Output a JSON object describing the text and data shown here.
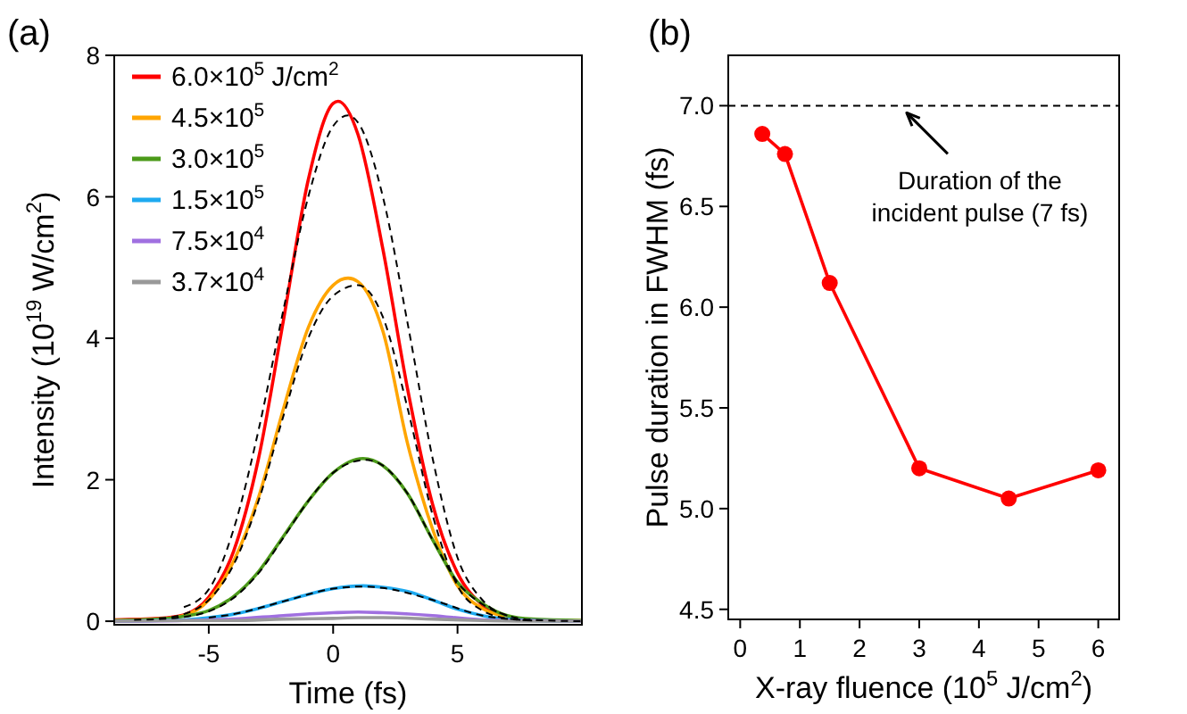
{
  "chart_data": [
    {
      "type": "line",
      "title": "(a)",
      "xlabel": "Time (fs)",
      "ylabel": "Intensity (10$^{19}$ W/cm$^{2}$)",
      "xlim": [
        -8.8,
        10
      ],
      "ylim": [
        -0.05,
        8
      ],
      "xticks": [
        -5,
        0,
        5
      ],
      "yticks": [
        0,
        2,
        4,
        6,
        8
      ],
      "grid": false,
      "legend": "top left",
      "marker": "none",
      "line_style": "solid",
      "x": [
        -8.8,
        -7,
        -6,
        -5,
        -4,
        -3,
        -2,
        -1,
        0,
        0.6,
        1,
        2,
        3,
        4,
        5,
        6,
        7,
        8,
        10
      ],
      "series": [
        {
          "name": "6.0×10$^{5}$ J/cm$^{2}$",
          "color": "#ff0000",
          "x": [
            -8.8,
            -7,
            -6,
            -5,
            -4,
            -3,
            -2,
            -1,
            0,
            0.2,
            1,
            2,
            3,
            4,
            5,
            6,
            7
          ],
          "values": [
            0.02,
            0.04,
            0.09,
            0.34,
            0.99,
            2.3,
            4.25,
            6.24,
            7.32,
            7.35,
            6.88,
            5.26,
            3.27,
            1.65,
            0.68,
            0.23,
            0.06
          ]
        },
        {
          "name": "4.5×10$^{5}$",
          "color": "#ffa500",
          "values": [
            0.01,
            0.03,
            0.08,
            0.3,
            0.85,
            1.75,
            3.0,
            4.15,
            4.75,
            4.85,
            4.8,
            4.1,
            2.5,
            1.3,
            0.5,
            0.18,
            0.06,
            0.02,
            0.01
          ]
        },
        {
          "name": "3.0×10$^{5}$",
          "color": "#4c9a1a",
          "x": [
            -8.8,
            -7,
            -6,
            -5,
            -4,
            -3,
            -2,
            -1,
            0,
            1.2,
            2,
            3,
            4,
            5,
            6,
            7,
            8,
            10
          ],
          "values": [
            0.01,
            0.03,
            0.07,
            0.15,
            0.35,
            0.7,
            1.2,
            1.7,
            2.1,
            2.3,
            2.2,
            1.8,
            1.15,
            0.55,
            0.25,
            0.08,
            0.03,
            0.01
          ]
        },
        {
          "name": "1.5×10$^{5}$",
          "color": "#1eaaf0",
          "x": [
            -8.8,
            -7,
            -6,
            -5,
            -4,
            -3,
            -2,
            -1,
            0,
            1.2,
            2,
            3,
            4,
            5,
            6,
            7,
            8,
            10
          ],
          "values": [
            0,
            0.01,
            0.02,
            0.05,
            0.1,
            0.18,
            0.28,
            0.38,
            0.46,
            0.5,
            0.48,
            0.42,
            0.3,
            0.17,
            0.08,
            0.03,
            0.01,
            0
          ]
        },
        {
          "name": "7.5×10$^{4}$",
          "color": "#a070e0",
          "x": [
            -8.8,
            -6,
            -4,
            -2,
            0,
            1,
            2,
            4,
            6,
            8,
            10
          ],
          "values": [
            0,
            0.01,
            0.03,
            0.08,
            0.12,
            0.13,
            0.12,
            0.08,
            0.02,
            0.01,
            0
          ]
        },
        {
          "name": "3.7×10$^{4}$",
          "color": "#999999",
          "x": [
            -8.8,
            -6,
            -4,
            -2,
            0,
            1,
            2,
            4,
            6,
            8,
            10
          ],
          "values": [
            0,
            0.01,
            0.01,
            0.03,
            0.04,
            0.05,
            0.05,
            0.03,
            0.01,
            0,
            0
          ]
        },
        {
          "color": "#000000",
          "line_style": "dashed",
          "values": [
            null,
            null,
            0.2,
            0.45,
            1.3,
            2.7,
            4.4,
            6.0,
            7.0,
            7.15,
            7.05,
            6.0,
            4.2,
            2.3,
            0.9,
            0.3,
            0.08,
            0.02,
            0
          ]
        },
        {
          "color": "#000000",
          "line_style": "dashed",
          "x": [
            -7,
            -6,
            -5,
            -4,
            -3,
            -2,
            -1,
            0,
            1,
            2,
            3,
            4,
            5,
            6,
            7,
            8
          ],
          "values": [
            0.04,
            0.1,
            0.3,
            0.8,
            1.7,
            2.9,
            4.0,
            4.6,
            4.75,
            4.3,
            3.0,
            1.5,
            0.5,
            0.15,
            0.04,
            0.01
          ]
        },
        {
          "color": "#000000",
          "line_style": "dashed",
          "x": [
            -8,
            -7,
            -6,
            -5,
            -4,
            -3,
            -2,
            -1,
            0,
            1.3,
            2,
            3,
            4,
            5,
            6,
            7
          ],
          "values": [
            0.02,
            0.03,
            0.06,
            0.14,
            0.33,
            0.68,
            1.18,
            1.7,
            2.1,
            2.28,
            2.2,
            1.8,
            1.15,
            0.55,
            0.24,
            0.08
          ]
        },
        {
          "color": "#000000",
          "line_style": "dashed",
          "x": [
            -5,
            -4,
            -2,
            0,
            1.2,
            2,
            4,
            6,
            8
          ],
          "values": [
            0.05,
            0.1,
            0.28,
            0.46,
            0.49,
            0.47,
            0.3,
            0.08,
            0.01
          ]
        }
      ]
    },
    {
      "type": "line",
      "title": "(b)",
      "xlabel": "X-ray fluence (10$^{5}$ J/cm$^{2}$)",
      "ylabel": "Pulse duration in FWHM (fs)",
      "xlim": [
        -0.2,
        6.35
      ],
      "ylim": [
        4.45,
        7.25
      ],
      "xticks": [
        0,
        1,
        2,
        3,
        4,
        5,
        6
      ],
      "yticks": [
        {
          "value": 4.5,
          "label": "4.5"
        },
        {
          "value": 5,
          "label": "5.0"
        },
        {
          "value": 5.5,
          "label": "5.5"
        },
        {
          "value": 6,
          "label": "6.0"
        },
        {
          "value": 6.5,
          "label": "6.5"
        },
        {
          "value": 7,
          "label": "7.0"
        }
      ],
      "grid": false,
      "legend": false,
      "marker": "circle",
      "line_style": "solid",
      "series": [
        {
          "color": "#ff0000",
          "x": [
            0.37,
            0.75,
            1.5,
            3.0,
            4.5,
            6.0
          ],
          "values": [
            6.86,
            6.76,
            6.12,
            5.2,
            5.05,
            5.19
          ]
        }
      ],
      "ref_lines": [
        {
          "axis": "y",
          "value": 7,
          "color": "#000000",
          "line_style": "dashed"
        }
      ],
      "annotations": [
        {
          "text": "Duration of the\nincident pulse (7 fs)",
          "x": 2.7,
          "y": 7
        }
      ]
    }
  ]
}
